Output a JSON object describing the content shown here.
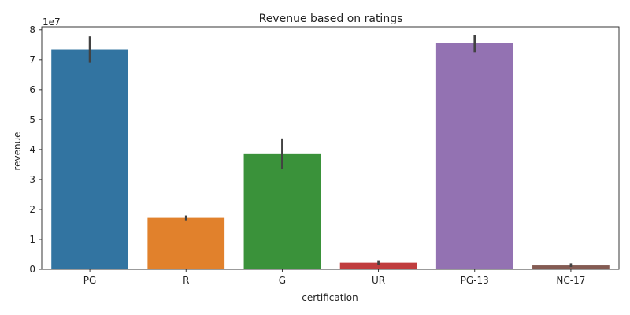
{
  "chart_data": {
    "type": "bar",
    "title": "Revenue based on ratings",
    "xlabel": "certification",
    "ylabel": "revenue",
    "y_offset_label": "1e7",
    "y_scale": 10000000,
    "ylim": [
      0,
      8.1
    ],
    "yticks": [
      0,
      1,
      2,
      3,
      4,
      5,
      6,
      7,
      8
    ],
    "grid": false,
    "categories": [
      "PG",
      "R",
      "G",
      "UR",
      "PG-13",
      "NC-17"
    ],
    "values": [
      7.35,
      1.72,
      3.87,
      0.22,
      7.55,
      0.13
    ],
    "error_low": [
      6.9,
      1.64,
      3.35,
      0.15,
      7.25,
      0.08
    ],
    "error_high": [
      7.78,
      1.8,
      4.37,
      0.3,
      7.82,
      0.2
    ],
    "colors": [
      "#3274a1",
      "#e1812c",
      "#3a923a",
      "#c03d3e",
      "#9372b2",
      "#845b53"
    ],
    "error_color": "#424242"
  }
}
